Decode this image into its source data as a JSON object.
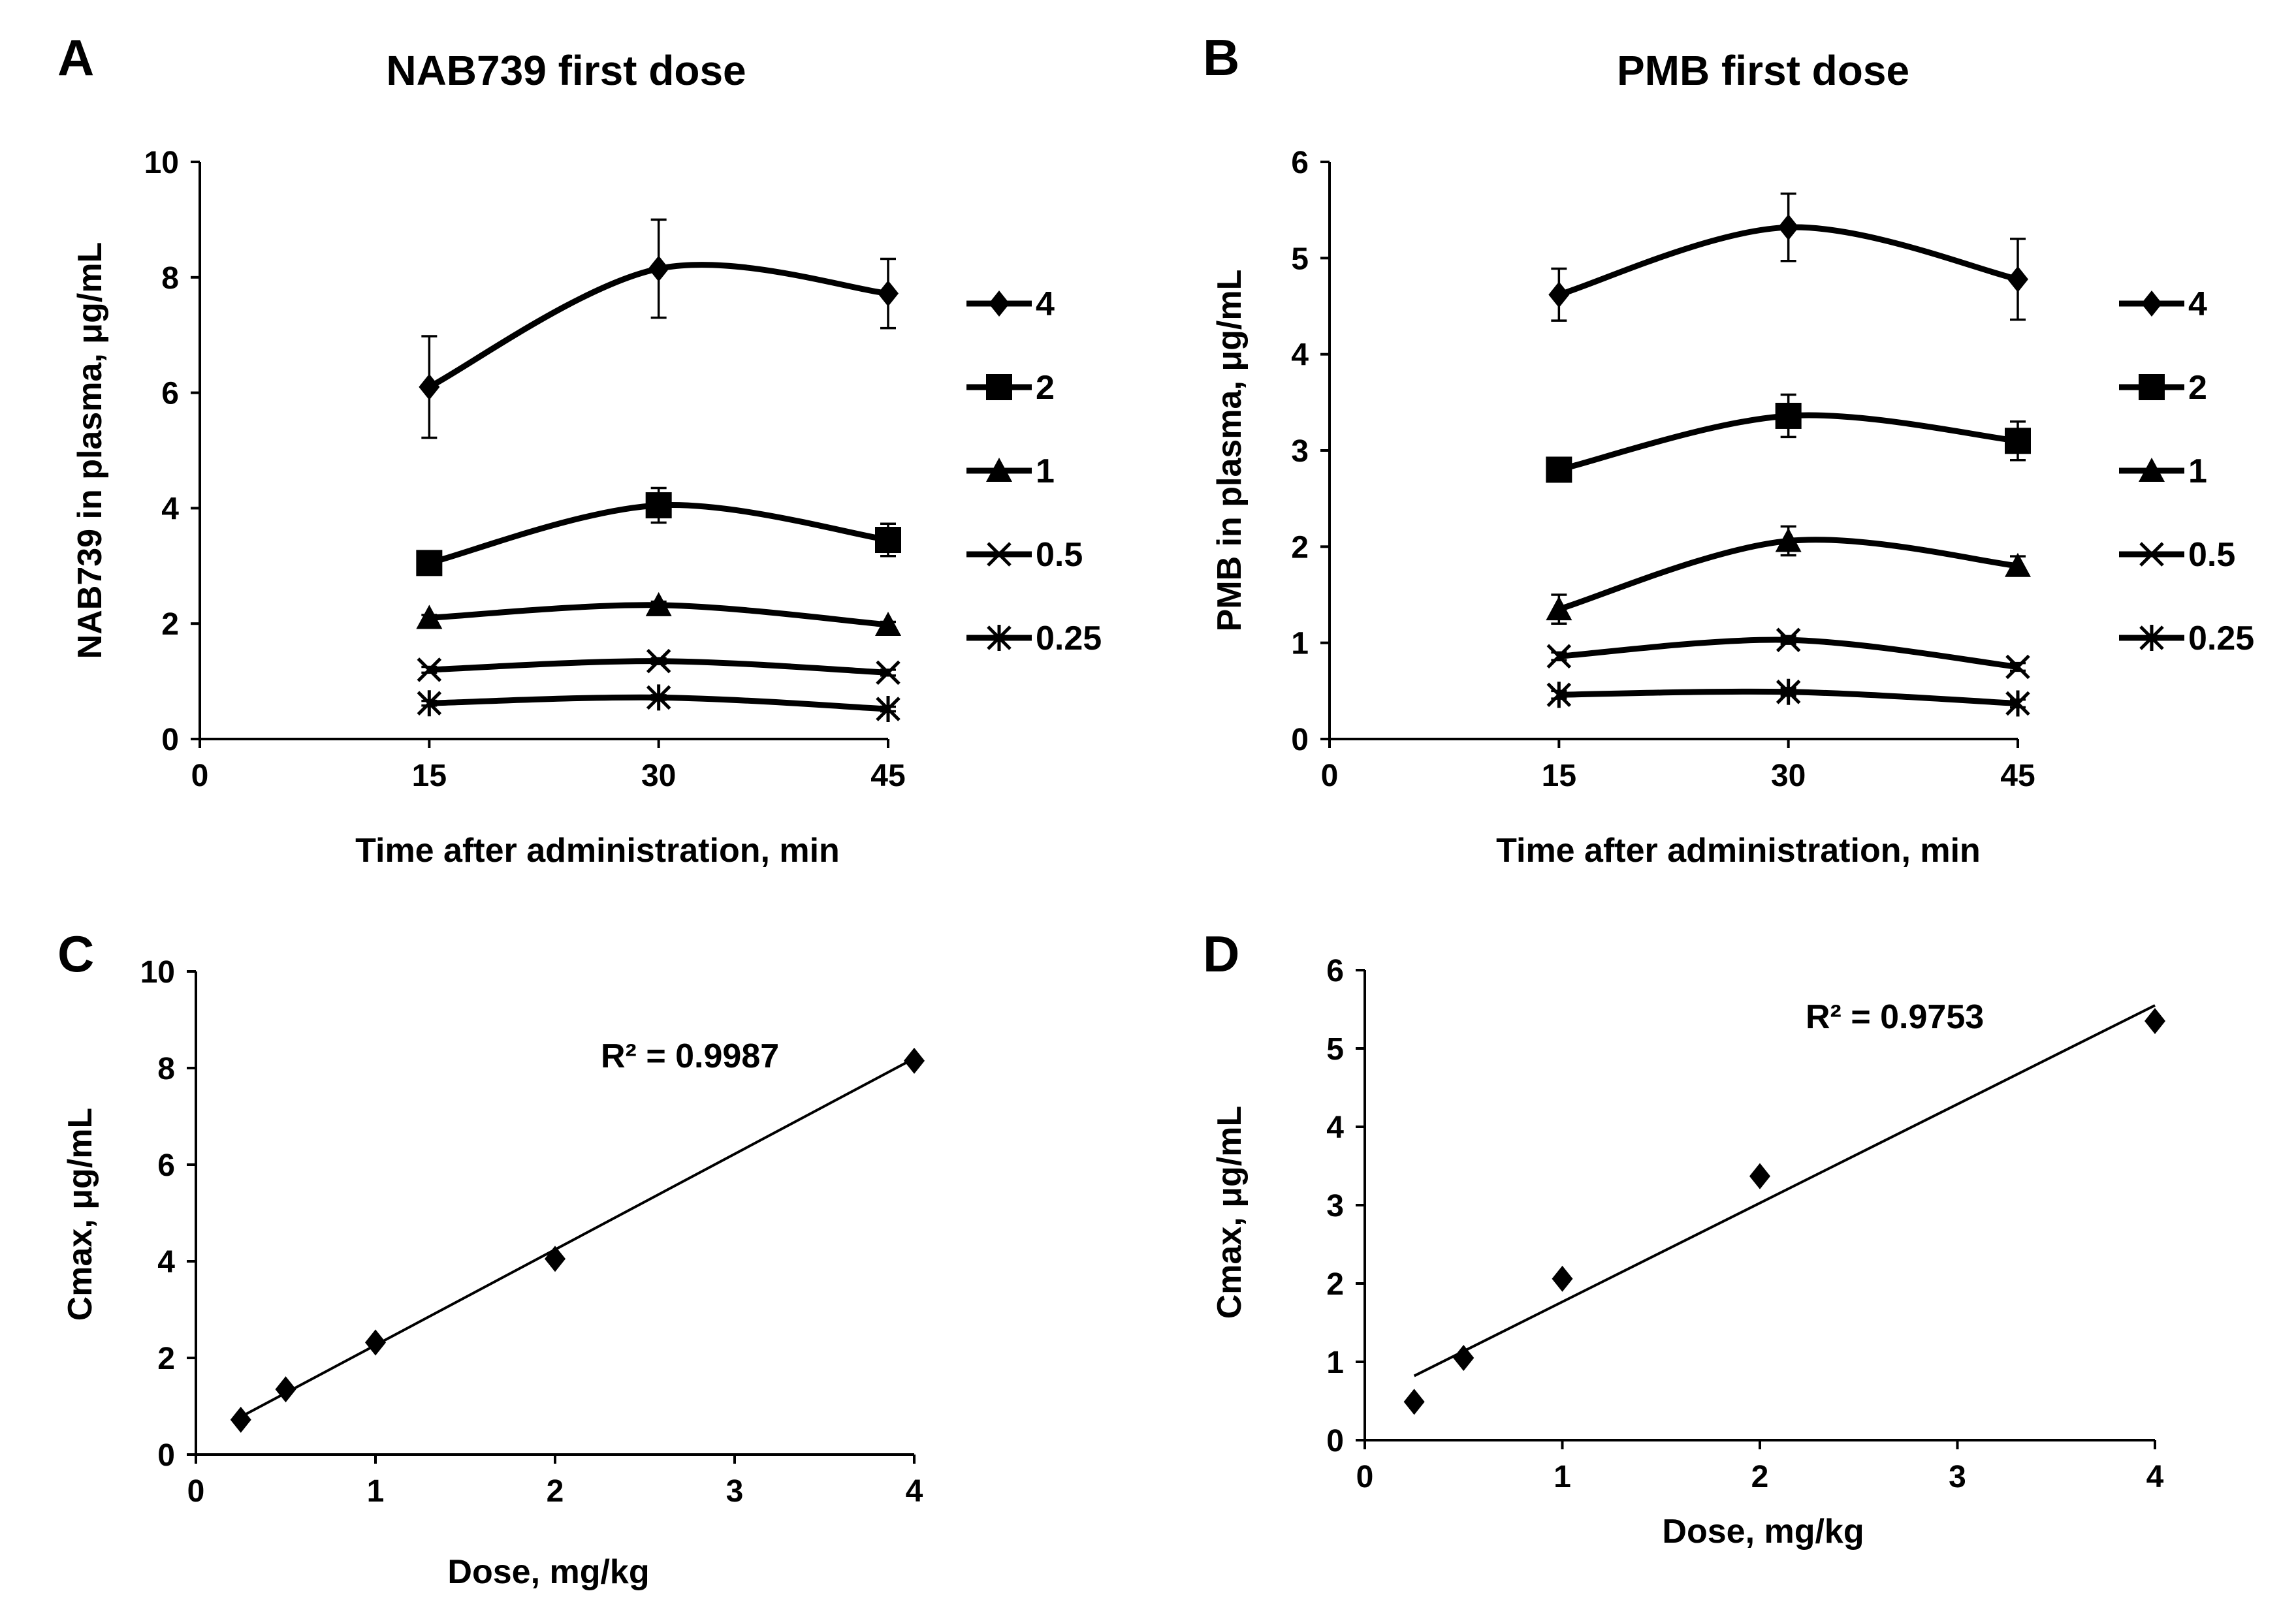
{
  "chart_data": [
    {
      "id": "A",
      "panel": "A",
      "type": "line",
      "title": "NAB739 first dose",
      "xlabel": "Time after administration, min",
      "ylabel": "NAB739 in plasma, μg/mL",
      "xlim": [
        0,
        45
      ],
      "ylim": [
        0,
        10
      ],
      "xticks": [
        0,
        15,
        30,
        45
      ],
      "yticks": [
        0,
        2,
        4,
        6,
        8,
        10
      ],
      "grid": false,
      "legend_position": "right",
      "x": [
        15,
        30,
        45
      ],
      "series": [
        {
          "name": "4",
          "marker": "diamond",
          "values": [
            6.1,
            8.15,
            7.72
          ],
          "errors": [
            0.88,
            0.85,
            0.6
          ]
        },
        {
          "name": "2",
          "marker": "square",
          "values": [
            3.05,
            4.05,
            3.45
          ],
          "errors": [
            0.15,
            0.3,
            0.28
          ]
        },
        {
          "name": "1",
          "marker": "triangle",
          "values": [
            2.1,
            2.32,
            1.98
          ],
          "errors": [
            0.05,
            0.06,
            0.05
          ]
        },
        {
          "name": "0.5",
          "marker": "x",
          "values": [
            1.2,
            1.35,
            1.15
          ],
          "errors": [
            0.05,
            0.05,
            0.05
          ]
        },
        {
          "name": "0.25",
          "marker": "star",
          "values": [
            0.62,
            0.72,
            0.52
          ],
          "errors": [
            0.04,
            0.04,
            0.04
          ]
        }
      ]
    },
    {
      "id": "B",
      "panel": "B",
      "type": "line",
      "title": "PMB first dose",
      "xlabel": "Time after administration, min",
      "ylabel": "PMB in plasma, μg/mL",
      "xlim": [
        0,
        45
      ],
      "ylim": [
        0,
        6
      ],
      "xticks": [
        0,
        15,
        30,
        45
      ],
      "yticks": [
        0,
        1,
        2,
        3,
        4,
        5,
        6
      ],
      "grid": false,
      "legend_position": "right",
      "x": [
        15,
        30,
        45
      ],
      "series": [
        {
          "name": "4",
          "marker": "diamond",
          "values": [
            4.62,
            5.32,
            4.78
          ],
          "errors": [
            0.27,
            0.35,
            0.42
          ]
        },
        {
          "name": "2",
          "marker": "square",
          "values": [
            2.8,
            3.36,
            3.1
          ],
          "errors": [
            0.05,
            0.22,
            0.2
          ]
        },
        {
          "name": "1",
          "marker": "triangle",
          "values": [
            1.35,
            2.06,
            1.8
          ],
          "errors": [
            0.15,
            0.15,
            0.1
          ]
        },
        {
          "name": "0.5",
          "marker": "x",
          "values": [
            0.86,
            1.03,
            0.75
          ],
          "errors": [
            0.04,
            0.04,
            0.04
          ]
        },
        {
          "name": "0.25",
          "marker": "star",
          "values": [
            0.46,
            0.49,
            0.37
          ],
          "errors": [
            0.04,
            0.04,
            0.04
          ]
        }
      ]
    },
    {
      "id": "C",
      "panel": "C",
      "type": "scatter",
      "title": "",
      "xlabel": "Dose, mg/kg",
      "ylabel": "Cmax, μg/mL",
      "xlim": [
        0,
        4
      ],
      "ylim": [
        0,
        10
      ],
      "xticks": [
        0,
        1,
        2,
        3,
        4
      ],
      "yticks": [
        0,
        2,
        4,
        6,
        8,
        10
      ],
      "grid": false,
      "x": [
        0.25,
        0.5,
        1,
        2,
        4
      ],
      "y": [
        0.72,
        1.35,
        2.32,
        4.05,
        8.15
      ],
      "trendline": {
        "x": [
          0.25,
          4
        ],
        "y": [
          0.78,
          8.2
        ]
      },
      "annotation": "R² = 0.9987"
    },
    {
      "id": "D",
      "panel": "D",
      "type": "scatter",
      "title": "",
      "xlabel": "Dose, mg/kg",
      "ylabel": "Cmax, μg/mL",
      "xlim": [
        0,
        4
      ],
      "ylim": [
        0,
        6
      ],
      "xticks": [
        0,
        1,
        2,
        3,
        4
      ],
      "yticks": [
        0,
        1,
        2,
        3,
        4,
        5,
        6
      ],
      "grid": false,
      "x": [
        0.25,
        0.5,
        1,
        2,
        4
      ],
      "y": [
        0.49,
        1.05,
        2.06,
        3.37,
        5.35
      ],
      "trendline": {
        "x": [
          0.25,
          4
        ],
        "y": [
          0.82,
          5.55
        ]
      },
      "annotation": "R² = 0.9753"
    }
  ]
}
